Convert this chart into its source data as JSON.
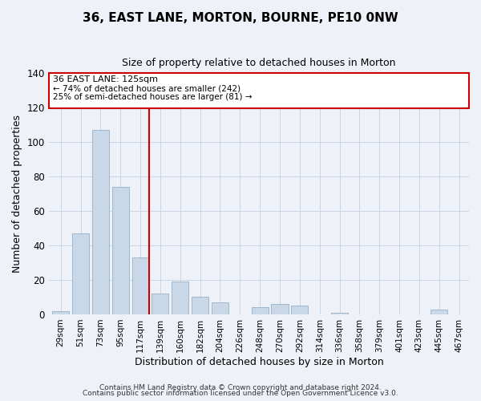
{
  "title": "36, EAST LANE, MORTON, BOURNE, PE10 0NW",
  "subtitle": "Size of property relative to detached houses in Morton",
  "xlabel": "Distribution of detached houses by size in Morton",
  "ylabel": "Number of detached properties",
  "bar_color": "#c8d8e8",
  "bar_edge_color": "#a0b8cc",
  "highlight_color": "#cc0000",
  "categories": [
    "29sqm",
    "51sqm",
    "73sqm",
    "95sqm",
    "117sqm",
    "139sqm",
    "160sqm",
    "182sqm",
    "204sqm",
    "226sqm",
    "248sqm",
    "270sqm",
    "292sqm",
    "314sqm",
    "336sqm",
    "358sqm",
    "379sqm",
    "401sqm",
    "423sqm",
    "445sqm",
    "467sqm"
  ],
  "values": [
    2,
    47,
    107,
    74,
    33,
    12,
    19,
    10,
    7,
    0,
    4,
    6,
    5,
    0,
    1,
    0,
    0,
    0,
    0,
    3,
    0
  ],
  "highlight_index": 4,
  "ylim": [
    0,
    140
  ],
  "yticks": [
    0,
    20,
    40,
    60,
    80,
    100,
    120,
    140
  ],
  "annotation_title": "36 EAST LANE: 125sqm",
  "annotation_line1": "← 74% of detached houses are smaller (242)",
  "annotation_line2": "25% of semi-detached houses are larger (81) →",
  "footer1": "Contains HM Land Registry data © Crown copyright and database right 2024.",
  "footer2": "Contains public sector information licensed under the Open Government Licence v3.0.",
  "background_color": "#eef2f8",
  "grid_color": "#c8d4e4"
}
